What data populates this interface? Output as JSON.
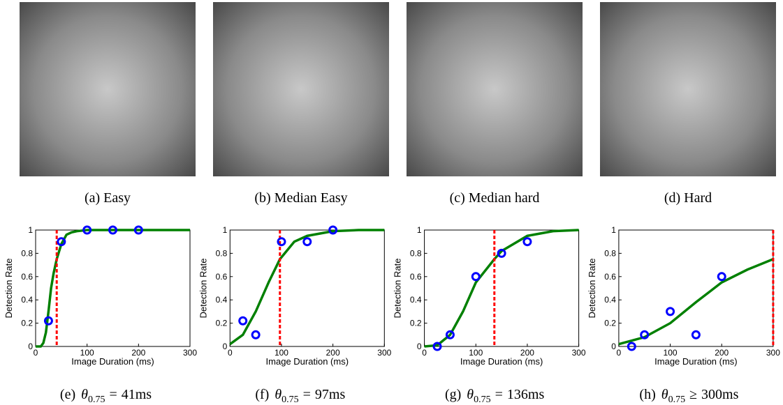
{
  "panels": [
    {
      "caption": "(a) Easy"
    },
    {
      "caption": "(b) Median Easy"
    },
    {
      "caption": "(c) Median hard"
    },
    {
      "caption": "(d) Hard"
    }
  ],
  "chart_data": [
    {
      "type": "scatter",
      "xlabel": "Image Duration (ms)",
      "ylabel": "Detection Rate",
      "xlim": [
        0,
        300
      ],
      "xticks": [
        0,
        100,
        200,
        300
      ],
      "ylim": [
        0,
        1
      ],
      "yticks": [
        0,
        0.2,
        0.4,
        0.6,
        0.8,
        1
      ],
      "grid": false,
      "series": [
        {
          "style": "marker",
          "color": "#0000ff",
          "x": [
            25,
            50,
            100,
            150,
            200
          ],
          "values": [
            0.22,
            0.9,
            1,
            1,
            1
          ]
        },
        {
          "style": "line",
          "color": "#008000",
          "x": [
            0,
            10,
            15,
            20,
            25,
            30,
            35,
            41,
            50,
            60,
            70,
            80,
            100,
            150,
            200,
            300
          ],
          "values": [
            0,
            0,
            0.03,
            0.12,
            0.3,
            0.5,
            0.63,
            0.75,
            0.88,
            0.96,
            0.98,
            0.99,
            1,
            1,
            1,
            1
          ]
        }
      ],
      "vline": {
        "x": 41,
        "color": "#ff0000"
      },
      "caption": {
        "label": "(e)",
        "symbol": "θ",
        "subscript": "0.75",
        "relation": "=",
        "value": "41ms"
      }
    },
    {
      "type": "scatter",
      "xlabel": "Image Duration (ms)",
      "ylabel": "Detection Rate",
      "xlim": [
        0,
        300
      ],
      "xticks": [
        0,
        100,
        200,
        300
      ],
      "ylim": [
        0,
        1
      ],
      "yticks": [
        0,
        0.2,
        0.4,
        0.6,
        0.8,
        1
      ],
      "grid": false,
      "series": [
        {
          "style": "marker",
          "color": "#0000ff",
          "x": [
            25,
            50,
            100,
            150,
            200
          ],
          "values": [
            0.22,
            0.1,
            0.9,
            0.9,
            1
          ]
        },
        {
          "style": "line",
          "color": "#008000",
          "x": [
            0,
            25,
            50,
            75,
            97,
            125,
            150,
            200,
            250,
            300
          ],
          "values": [
            0.02,
            0.1,
            0.3,
            0.55,
            0.75,
            0.9,
            0.95,
            0.99,
            1,
            1
          ]
        }
      ],
      "vline": {
        "x": 97,
        "color": "#ff0000"
      },
      "caption": {
        "label": "(f)",
        "symbol": "θ",
        "subscript": "0.75",
        "relation": "=",
        "value": "97ms"
      }
    },
    {
      "type": "scatter",
      "xlabel": "Image Duration (ms)",
      "ylabel": "Detection Rate",
      "xlim": [
        0,
        300
      ],
      "xticks": [
        0,
        100,
        200,
        300
      ],
      "ylim": [
        0,
        1
      ],
      "yticks": [
        0,
        0.2,
        0.4,
        0.6,
        0.8,
        1
      ],
      "grid": false,
      "series": [
        {
          "style": "marker",
          "color": "#0000ff",
          "x": [
            25,
            50,
            100,
            150,
            200
          ],
          "values": [
            0,
            0.1,
            0.6,
            0.8,
            0.9
          ]
        },
        {
          "style": "line",
          "color": "#008000",
          "x": [
            0,
            25,
            50,
            75,
            100,
            136,
            150,
            200,
            250,
            300
          ],
          "values": [
            0,
            0.01,
            0.1,
            0.3,
            0.55,
            0.75,
            0.82,
            0.95,
            0.99,
            1
          ]
        }
      ],
      "vline": {
        "x": 136,
        "color": "#ff0000"
      },
      "caption": {
        "label": "(g)",
        "symbol": "θ",
        "subscript": "0.75",
        "relation": "=",
        "value": "136ms"
      }
    },
    {
      "type": "scatter",
      "xlabel": "Image Duration (ms)",
      "ylabel": "Detection Rate",
      "xlim": [
        0,
        300
      ],
      "xticks": [
        0,
        100,
        200,
        300
      ],
      "ylim": [
        0,
        1
      ],
      "yticks": [
        0,
        0.2,
        0.4,
        0.6,
        0.8,
        1
      ],
      "grid": false,
      "series": [
        {
          "style": "marker",
          "color": "#0000ff",
          "x": [
            25,
            50,
            100,
            150,
            200
          ],
          "values": [
            0,
            0.1,
            0.3,
            0.1,
            0.6
          ]
        },
        {
          "style": "line",
          "color": "#008000",
          "x": [
            0,
            50,
            100,
            150,
            200,
            250,
            300
          ],
          "values": [
            0.02,
            0.08,
            0.2,
            0.38,
            0.55,
            0.66,
            0.75
          ]
        }
      ],
      "vline": {
        "x": 300,
        "color": "#ff0000"
      },
      "caption": {
        "label": "(h)",
        "symbol": "θ",
        "subscript": "0.75",
        "relation": "≥",
        "value": "300ms"
      }
    }
  ]
}
